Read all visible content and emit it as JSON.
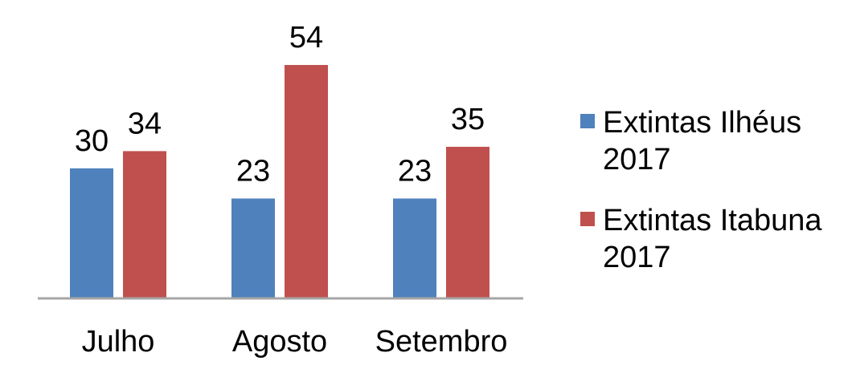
{
  "chart_data": {
    "type": "bar",
    "categories": [
      "Julho",
      "Agosto",
      "Setembro"
    ],
    "series": [
      {
        "name": "Extintas Ilhéus 2017",
        "values": [
          30,
          23,
          23
        ],
        "color": "#4F81BD"
      },
      {
        "name": "Extintas Itabuna 2017",
        "values": [
          34,
          54,
          35
        ],
        "color": "#C0504D"
      }
    ],
    "ylim": [
      0,
      54
    ],
    "grid": false,
    "data_labels": true,
    "legend_position": "right",
    "axis_color": "#A6A6A6"
  }
}
